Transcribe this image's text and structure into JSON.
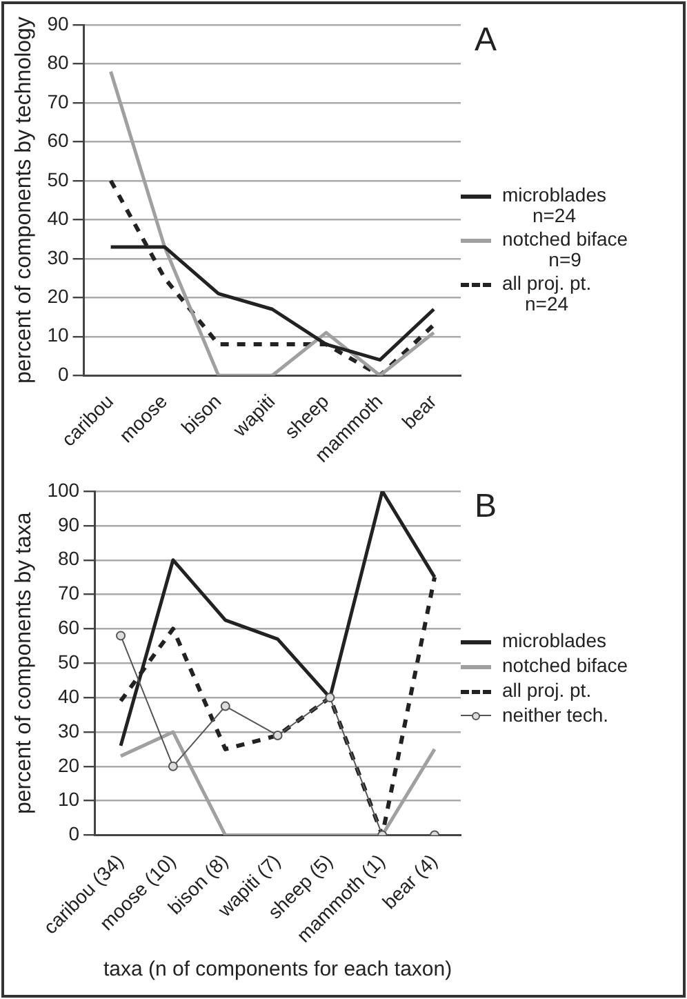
{
  "chart_data": [
    {
      "type": "line",
      "title": "A",
      "ylabel": "percent of components by technology",
      "categories": [
        "caribou",
        "moose",
        "bison",
        "wapiti",
        "sheep",
        "mammoth",
        "bear"
      ],
      "ylim": [
        0,
        90
      ],
      "yticks": [
        0,
        10,
        20,
        30,
        40,
        50,
        60,
        70,
        80,
        90
      ],
      "grid": "y",
      "legend": "right",
      "series": [
        {
          "name": "microblades\nn=24",
          "color": "#222222",
          "line_style": "solid",
          "marker": "none",
          "values": [
            33,
            33,
            21,
            17,
            8,
            4,
            17
          ]
        },
        {
          "name": "notched biface\nn=9",
          "color": "#a0a0a0",
          "line_style": "solid",
          "marker": "none",
          "values": [
            78,
            33,
            0,
            0,
            11,
            0,
            11
          ]
        },
        {
          "name": "all proj. pt.\nn=24",
          "color": "#222222",
          "line_style": "dashed",
          "marker": "none",
          "values": [
            50,
            25,
            8,
            8,
            8,
            0,
            13
          ]
        }
      ]
    },
    {
      "type": "line",
      "title": "B",
      "ylabel": "percent of components by taxa",
      "xlabel": "taxa (n of components for each taxon)",
      "categories": [
        "caribou (34)",
        "moose (10)",
        "bison (8)",
        "wapiti (7)",
        "sheep (5)",
        "mammoth (1)",
        "bear (4)"
      ],
      "ylim": [
        0,
        100
      ],
      "yticks": [
        0,
        10,
        20,
        30,
        40,
        50,
        60,
        70,
        80,
        90,
        100
      ],
      "grid": "y",
      "legend": "right",
      "series": [
        {
          "name": "microblades",
          "color": "#222222",
          "line_style": "solid",
          "marker": "none",
          "values": [
            26,
            80,
            62.5,
            57,
            40,
            100,
            75
          ]
        },
        {
          "name": "notched biface",
          "color": "#a0a0a0",
          "line_style": "solid",
          "marker": "none",
          "values": [
            23,
            30,
            0,
            0,
            0,
            0,
            25
          ]
        },
        {
          "name": "all proj. pt.",
          "color": "#222222",
          "line_style": "dashed",
          "marker": "none",
          "values": [
            39,
            60,
            25,
            29,
            40,
            0,
            75
          ]
        },
        {
          "name": "neither tech.",
          "color": "#555555",
          "line_style": "solid",
          "marker": "circle",
          "values": [
            58,
            20,
            37.5,
            29,
            40,
            0,
            0
          ]
        }
      ]
    }
  ]
}
